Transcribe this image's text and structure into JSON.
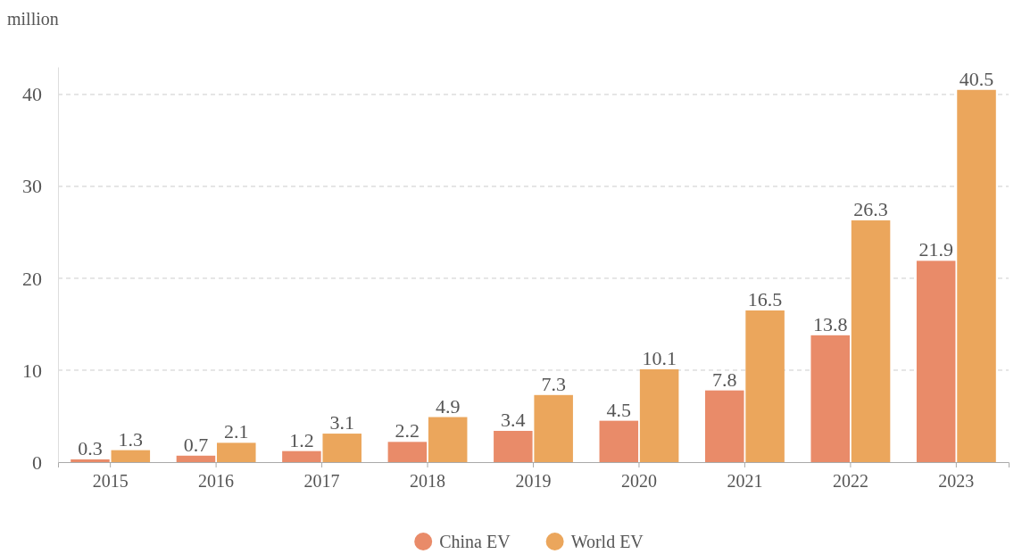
{
  "chart_data": {
    "type": "bar",
    "ylabel": "million",
    "categories": [
      "2015",
      "2016",
      "2017",
      "2018",
      "2019",
      "2020",
      "2021",
      "2022",
      "2023"
    ],
    "series": [
      {
        "name": "China EV",
        "color": "#e98b69",
        "values": [
          0.3,
          0.7,
          1.2,
          2.2,
          3.4,
          4.5,
          7.8,
          13.8,
          21.9
        ]
      },
      {
        "name": "World EV",
        "color": "#eba65c",
        "values": [
          1.3,
          2.1,
          3.1,
          4.9,
          7.3,
          10.1,
          16.5,
          26.3,
          40.5
        ]
      }
    ],
    "ylim": [
      0,
      43
    ],
    "yticks": [
      0,
      10,
      20,
      30,
      40
    ],
    "grid": "y",
    "legend": "bottom",
    "data_labels": true
  }
}
